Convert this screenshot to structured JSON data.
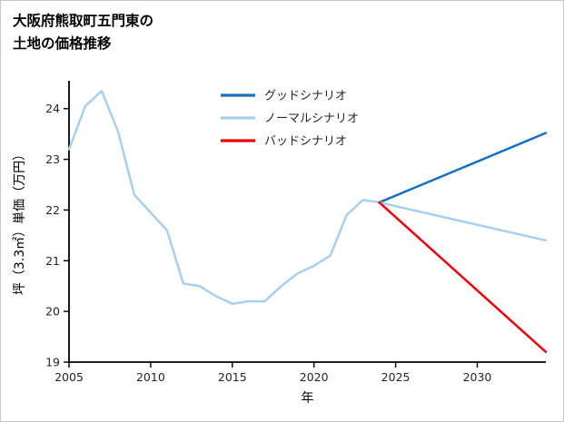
{
  "page": {
    "title_line1": "大阪府熊取町五門東の",
    "title_line2": "土地の価格推移"
  },
  "chart_data": {
    "type": "line",
    "title": "大阪府熊取町五門東の土地の価格推移",
    "xlabel": "年",
    "ylabel": "坪（3.3㎡）単価（万円）",
    "xlim": [
      2005,
      2034.2
    ],
    "ylim": [
      19,
      24.55
    ],
    "xticks": [
      2005,
      2010,
      2015,
      2020,
      2025,
      2030
    ],
    "yticks": [
      19,
      20,
      21,
      22,
      23,
      24
    ],
    "grid": false,
    "legend_position": "upper center",
    "colors": {
      "good": "#1570bf",
      "normal": "#a9cfee",
      "bad": "#e8000b",
      "axis": "#000000",
      "tick_text": "#262626"
    },
    "legend": [
      {
        "label": "グッドシナリオ",
        "series": "good"
      },
      {
        "label": "ノーマルシナリオ",
        "series": "normal"
      },
      {
        "label": "バッドシナリオ",
        "series": "bad"
      }
    ],
    "series": [
      {
        "key": "historical",
        "color_key": "normal",
        "x": [
          2005,
          2006,
          2007,
          2008,
          2009,
          2010,
          2011,
          2012,
          2013,
          2014,
          2015,
          2016,
          2017,
          2018,
          2019,
          2020,
          2021,
          2022,
          2023,
          2024
        ],
        "y": [
          23.2,
          24.05,
          24.35,
          23.55,
          22.3,
          21.95,
          21.6,
          20.55,
          20.5,
          20.3,
          20.15,
          20.2,
          20.2,
          20.5,
          20.75,
          20.9,
          21.1,
          21.9,
          22.2,
          22.15
        ]
      },
      {
        "key": "good",
        "color_key": "good",
        "x": [
          2024,
          2034.2
        ],
        "y": [
          22.15,
          23.52
        ]
      },
      {
        "key": "normal",
        "color_key": "normal",
        "x": [
          2024,
          2034.2
        ],
        "y": [
          22.15,
          21.4
        ]
      },
      {
        "key": "bad",
        "color_key": "bad",
        "x": [
          2024,
          2034.2
        ],
        "y": [
          22.15,
          19.2
        ]
      }
    ]
  }
}
